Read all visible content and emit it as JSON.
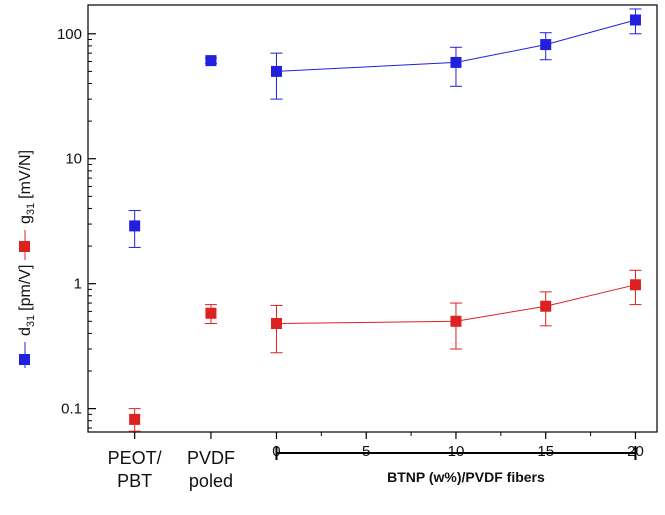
{
  "chart_data": {
    "type": "scatter",
    "y_scale": "log",
    "ylim": [
      0.065,
      170
    ],
    "y_ticks": [
      {
        "value": 0.1,
        "label": "0.1"
      },
      {
        "value": 1,
        "label": "1"
      },
      {
        "value": 10,
        "label": "10"
      },
      {
        "value": 100,
        "label": "100"
      }
    ],
    "xlim": [
      -10.5,
      21.2
    ],
    "x_ticks": [
      {
        "value": -7.9,
        "label": ""
      },
      {
        "value": -3.65,
        "label": ""
      },
      {
        "value": 0,
        "label": "0"
      },
      {
        "value": 5,
        "label": "5"
      },
      {
        "value": 10,
        "label": "10"
      },
      {
        "value": 15,
        "label": "15"
      },
      {
        "value": 20,
        "label": "20"
      }
    ],
    "categories": [
      {
        "x": -7.9,
        "line1": "PEOT/",
        "line2": "PBT"
      },
      {
        "x": -3.65,
        "line1": "PVDF",
        "line2": "poled"
      }
    ],
    "bracket_label": "BTNP (w%)/PVDF fibers",
    "ylabel": {
      "d_label": "d",
      "d_sub": "31",
      "d_unit": "[pm/V]",
      "g_label": "g",
      "g_sub": "31",
      "g_unit": "[mV/N]"
    },
    "series": [
      {
        "color": "#2020dd",
        "connect_from_index": 2,
        "points": [
          {
            "x": -7.9,
            "y": 2.9,
            "err_low": 1.95,
            "err_high": 3.85
          },
          {
            "x": -3.65,
            "y": 61,
            "err_low": 58,
            "err_high": 64
          },
          {
            "x": 0,
            "y": 50,
            "err_low": 30,
            "err_high": 70
          },
          {
            "x": 10,
            "y": 59,
            "err_low": 38,
            "err_high": 78
          },
          {
            "x": 15,
            "y": 82,
            "err_low": 62,
            "err_high": 102
          },
          {
            "x": 20,
            "y": 129,
            "err_low": 100,
            "err_high": 158
          }
        ]
      },
      {
        "color": "#dd2020",
        "connect_from_index": 2,
        "points": [
          {
            "x": -7.9,
            "y": 0.082,
            "err_low": 0.066,
            "err_high": 0.1
          },
          {
            "x": -3.65,
            "y": 0.58,
            "err_low": 0.48,
            "err_high": 0.68
          },
          {
            "x": 0,
            "y": 0.48,
            "err_low": 0.28,
            "err_high": 0.67
          },
          {
            "x": 10,
            "y": 0.5,
            "err_low": 0.3,
            "err_high": 0.7
          },
          {
            "x": 15,
            "y": 0.66,
            "err_low": 0.46,
            "err_high": 0.86
          },
          {
            "x": 20,
            "y": 0.98,
            "err_low": 0.68,
            "err_high": 1.28
          }
        ]
      }
    ]
  }
}
